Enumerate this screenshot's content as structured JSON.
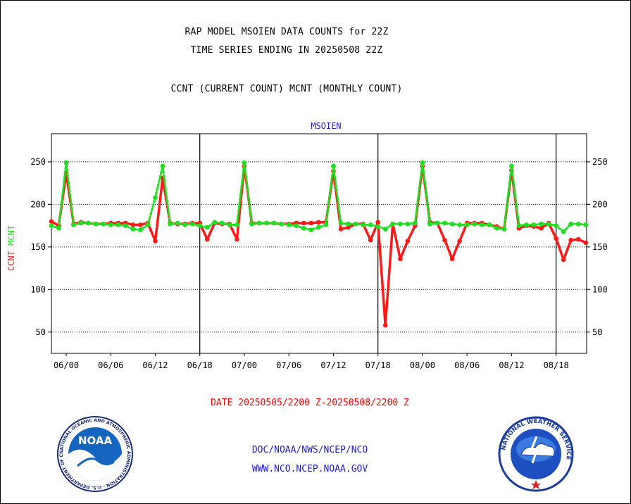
{
  "header": {
    "title_line1": "RAP MODEL MSOIEN DATA COUNTS for 22Z",
    "title_line2": "TIME SERIES ENDING IN 20250508 22Z",
    "subtitle": "CCNT (CURRENT COUNT) MCNT (MONTHLY COUNT)"
  },
  "footer": {
    "date_range": "DATE 20250505/2200 Z-20250508/2200 Z",
    "org_path": "DOC/NOAA/NWS/NCEP/NCO",
    "website": "WWW.NCO.NCEP.NOAA.GOV"
  },
  "logos": {
    "noaa": "NOAA",
    "noaa_ring_text": "NATIONAL OCEANIC AND ATMOSPHERIC ADMINISTRATION · U.S. DEPARTMENT OF COMMERCE",
    "nws_ring_text": "NATIONAL WEATHER SERVICE"
  },
  "colors": {
    "ccnt": "#ff1a1a",
    "mcnt": "#22dd22",
    "plot_label": "#2020cc",
    "footer_red": "#ff0000",
    "footer_blue": "#2020cc"
  },
  "chart_data": {
    "type": "line",
    "plot_label": "MSOIEN",
    "ylabel_ccnt": "CCNT",
    "ylabel_mcnt": "MCNT",
    "x_tick_labels": [
      "06/00",
      "06/06",
      "06/12",
      "06/18",
      "07/00",
      "07/06",
      "07/12",
      "07/18",
      "08/00",
      "08/06",
      "08/12",
      "08/18"
    ],
    "day_boundaries": [
      "06/18",
      "07/18",
      "08/18"
    ],
    "y_ticks": [
      50,
      100,
      150,
      200,
      250
    ],
    "ylim": [
      25,
      283
    ],
    "grid": "horizontal dotted",
    "series": [
      {
        "name": "CCNT",
        "x": [
          "05/22",
          "05/23",
          "06/00",
          "06/01",
          "06/02",
          "06/03",
          "06/04",
          "06/05",
          "06/06",
          "06/07",
          "06/08",
          "06/09",
          "06/10",
          "06/11",
          "06/12",
          "06/13",
          "06/14",
          "06/15",
          "06/16",
          "06/17",
          "06/18",
          "06/19",
          "06/20",
          "06/21",
          "06/22",
          "06/23",
          "07/00",
          "07/01",
          "07/02",
          "07/03",
          "07/04",
          "07/05",
          "07/06",
          "07/07",
          "07/08",
          "07/09",
          "07/10",
          "07/11",
          "07/12",
          "07/13",
          "07/14",
          "07/15",
          "07/16",
          "07/17",
          "07/18",
          "07/19",
          "07/20",
          "07/21",
          "07/22",
          "07/23",
          "08/00",
          "08/01",
          "08/02",
          "08/03",
          "08/04",
          "08/05",
          "08/06",
          "08/07",
          "08/08",
          "08/09",
          "08/10",
          "08/11",
          "08/12",
          "08/13",
          "08/14",
          "08/15",
          "08/16",
          "08/17",
          "08/18",
          "08/19",
          "08/20",
          "08/21",
          "08/22"
        ],
        "values": [
          180,
          175,
          237,
          177,
          179,
          178,
          177,
          177,
          178,
          178,
          178,
          176,
          176,
          178,
          157,
          231,
          178,
          177,
          177,
          178,
          178,
          159,
          178,
          177,
          177,
          159,
          245,
          178,
          178,
          178,
          178,
          177,
          177,
          178,
          178,
          178,
          179,
          179,
          239,
          171,
          173,
          177,
          177,
          158,
          179,
          58,
          177,
          136,
          157,
          175,
          245,
          179,
          178,
          158,
          136,
          157,
          178,
          178,
          178,
          176,
          174,
          171,
          240,
          172,
          175,
          174,
          172,
          178,
          160,
          135,
          158,
          159,
          155
        ]
      },
      {
        "name": "MCNT",
        "x": [
          "05/22",
          "05/23",
          "06/00",
          "06/01",
          "06/02",
          "06/03",
          "06/04",
          "06/05",
          "06/06",
          "06/07",
          "06/08",
          "06/09",
          "06/10",
          "06/11",
          "06/12",
          "06/13",
          "06/14",
          "06/15",
          "06/16",
          "06/17",
          "06/18",
          "06/19",
          "06/20",
          "06/21",
          "06/22",
          "06/23",
          "07/00",
          "07/01",
          "07/02",
          "07/03",
          "07/04",
          "07/05",
          "07/06",
          "07/07",
          "07/08",
          "07/09",
          "07/10",
          "07/11",
          "07/12",
          "07/13",
          "07/14",
          "07/15",
          "07/16",
          "07/17",
          "07/18",
          "07/19",
          "07/20",
          "07/21",
          "07/22",
          "07/23",
          "08/00",
          "08/01",
          "08/02",
          "08/03",
          "08/04",
          "08/05",
          "08/06",
          "08/07",
          "08/08",
          "08/09",
          "08/10",
          "08/11",
          "08/12",
          "08/13",
          "08/14",
          "08/15",
          "08/16",
          "08/17",
          "08/18",
          "08/19",
          "08/20",
          "08/21",
          "08/22"
        ],
        "values": [
          175,
          172,
          249,
          176,
          178,
          178,
          177,
          177,
          176,
          176,
          175,
          171,
          170,
          176,
          208,
          245,
          177,
          178,
          176,
          177,
          175,
          173,
          179,
          178,
          176,
          176,
          249,
          177,
          178,
          178,
          178,
          177,
          176,
          175,
          172,
          170,
          173,
          176,
          245,
          178,
          177,
          177,
          176,
          176,
          174,
          171,
          177,
          177,
          177,
          178,
          249,
          177,
          178,
          178,
          177,
          176,
          176,
          177,
          176,
          176,
          172,
          171,
          245,
          175,
          176,
          176,
          177,
          177,
          175,
          168,
          177,
          177,
          176
        ]
      }
    ]
  }
}
